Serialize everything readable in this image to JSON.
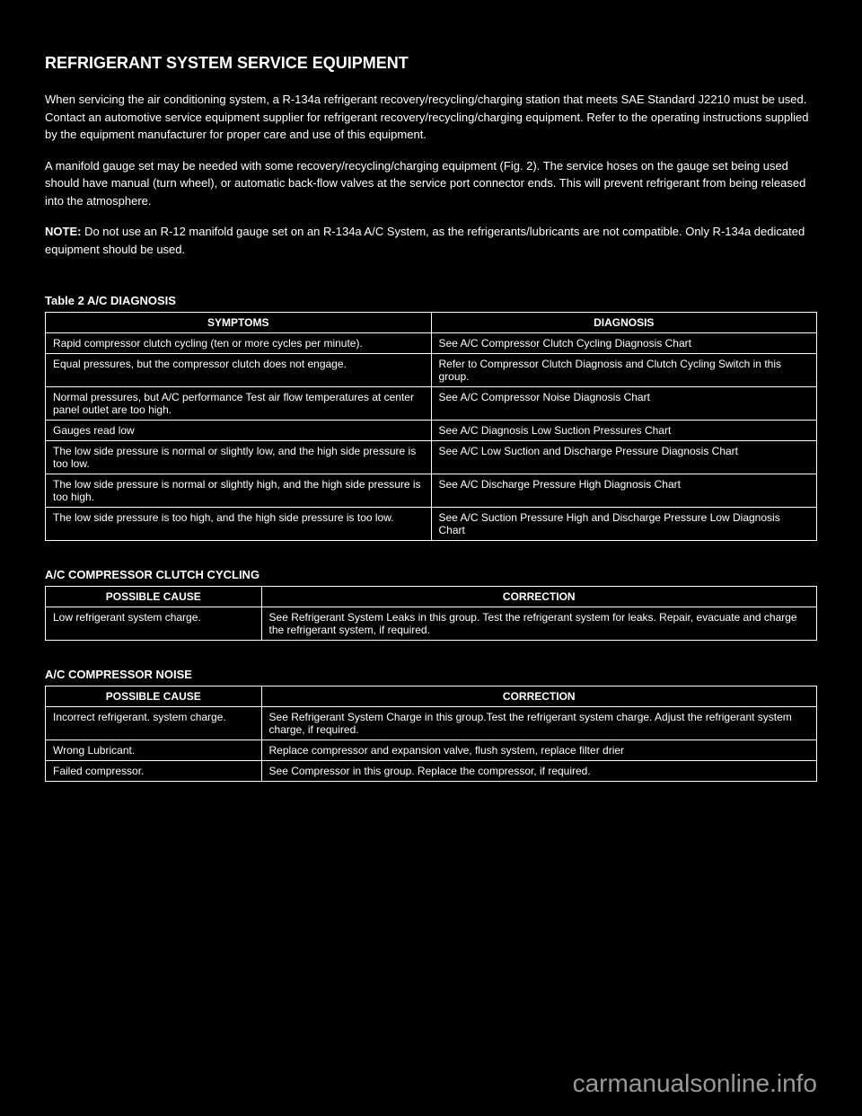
{
  "header": {
    "title": "REFRIGERANT SYSTEM SERVICE EQUIPMENT",
    "paragraph1_prefix": "When servicing the air conditioning system, a R-134a refrigerant recovery/recycling/charging station that meets SAE Standard J2210 must be used. Contact an automotive service equipment supplier for refrigerant recovery/recycling/charging equipment. Refer to the operating instructions supplied by the equipment manufacturer for proper care and use of this equipment.",
    "paragraph2": "A manifold gauge set may be needed with some recovery/recycling/charging equipment (Fig. 2). The service hoses on the gauge set being used should have manual (turn wheel), or automatic back-flow valves at the service port connector ends. This will prevent refrigerant from being released into the atmosphere.",
    "note_label": "NOTE:",
    "note_text": " Do not use an R-12 manifold gauge set on an R-134a A/C System, as the refrigerants/lubricants are not compatible. Only R-134a dedicated equipment should be used."
  },
  "tables": {
    "symptoms": {
      "label": "Table 2 A/C DIAGNOSIS",
      "columns": [
        "SYMPTOMS",
        "DIAGNOSIS"
      ],
      "rows": [
        [
          "Rapid compressor clutch cycling (ten or more cycles per minute).",
          "See A/C Compressor Clutch Cycling Diagnosis Chart"
        ],
        [
          "Equal pressures, but the compressor clutch does not engage.",
          "Refer to Compressor Clutch Diagnosis and Clutch Cycling Switch in this group."
        ],
        [
          "Normal pressures, but A/C performance Test air flow temperatures at center panel outlet are too high.",
          "See A/C Compressor Noise Diagnosis Chart"
        ],
        [
          "Gauges read low",
          "See A/C Diagnosis Low Suction Pressures Chart"
        ],
        [
          "The low side pressure is normal or slightly low, and the high side pressure is too low.",
          "See A/C Low Suction and Discharge Pressure Diagnosis Chart"
        ],
        [
          "The low side pressure is normal or slightly high, and the high side pressure is too high.",
          "See A/C Discharge Pressure High Diagnosis Chart"
        ],
        [
          "The low side pressure is too high, and the high side pressure is too low.",
          "See A/C Suction Pressure High and Discharge Pressure Low Diagnosis Chart"
        ]
      ]
    },
    "clutch_cycling": {
      "label": "A/C COMPRESSOR CLUTCH CYCLING",
      "columns": [
        "POSSIBLE CAUSE",
        "CORRECTION"
      ],
      "rows": [
        [
          "Low refrigerant system charge.",
          "See Refrigerant System Leaks in this group. Test the refrigerant system for leaks. Repair, evacuate and charge the refrigerant system, if required."
        ]
      ]
    },
    "compressor_noise": {
      "label": "A/C COMPRESSOR NOISE",
      "columns": [
        "POSSIBLE CAUSE",
        "CORRECTION"
      ],
      "rows": [
        [
          "Incorrect refrigerant. system charge.",
          "See Refrigerant System Charge in this group.Test the refrigerant system charge. Adjust the refrigerant system charge, if required."
        ],
        [
          "Wrong Lubricant.",
          "Replace compressor and expansion valve, flush system, replace filter drier"
        ],
        [
          "Failed compressor.",
          "See Compressor in this group. Replace the compressor, if required."
        ]
      ]
    }
  },
  "watermark": "carmanualsonline.info"
}
